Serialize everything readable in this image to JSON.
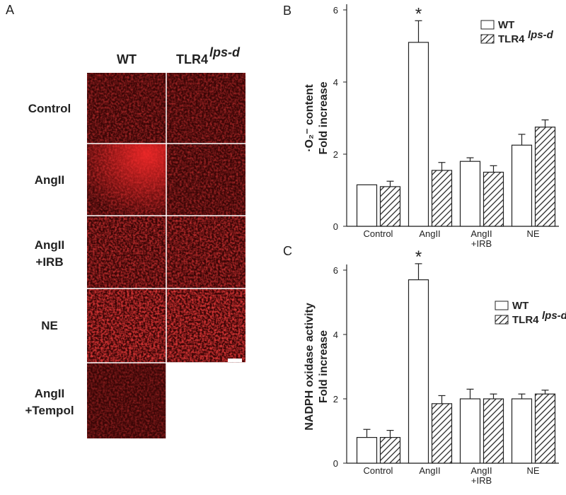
{
  "panel_a": {
    "label": "A",
    "columns": [
      "WT",
      {
        "text": "TLR4",
        "sup": "lps-d"
      }
    ],
    "rows": [
      "Control",
      "AngII",
      [
        "AngII",
        "+IRB"
      ],
      "NE",
      [
        "AngII",
        "+Tempol"
      ]
    ]
  },
  "chart_data": [
    {
      "type": "bar",
      "panel_label": "B",
      "y_label": [
        "·O₂⁻ content",
        "Fold increase"
      ],
      "categories": [
        "Control",
        "AngII",
        [
          "AngII",
          "+IRB"
        ],
        "NE"
      ],
      "series": [
        {
          "name": "WT",
          "color": "#ffffff",
          "values": [
            1.15,
            5.1,
            1.8,
            2.25
          ],
          "errors": [
            0,
            0.6,
            0.1,
            0.3
          ]
        },
        {
          "name": "TLR4",
          "name_sup": "lps-d",
          "color": "#ffffff",
          "hatch": true,
          "values": [
            1.1,
            1.55,
            1.5,
            2.75
          ],
          "errors": [
            0.15,
            0.22,
            0.18,
            0.2
          ]
        }
      ],
      "annotation": "*",
      "ylim": [
        0,
        6
      ],
      "yticks": [
        0,
        2,
        4,
        6
      ]
    },
    {
      "type": "bar",
      "panel_label": "C",
      "y_label": [
        "NADPH oxidase activity",
        "Fold increase"
      ],
      "categories": [
        "Control",
        "AngII",
        [
          "AngII",
          "+IRB"
        ],
        "NE"
      ],
      "series": [
        {
          "name": "WT",
          "color": "#ffffff",
          "values": [
            0.8,
            5.7,
            2.0,
            2.0
          ],
          "errors": [
            0.25,
            0.5,
            0.3,
            0.15
          ]
        },
        {
          "name": "TLR4",
          "name_sup": "lps-d",
          "color": "#ffffff",
          "hatch": true,
          "values": [
            0.8,
            1.85,
            2.0,
            2.15
          ],
          "errors": [
            0.22,
            0.25,
            0.15,
            0.12
          ]
        }
      ],
      "annotation": "*",
      "ylim": [
        0,
        6
      ],
      "yticks": [
        0,
        2,
        4,
        6
      ]
    }
  ]
}
